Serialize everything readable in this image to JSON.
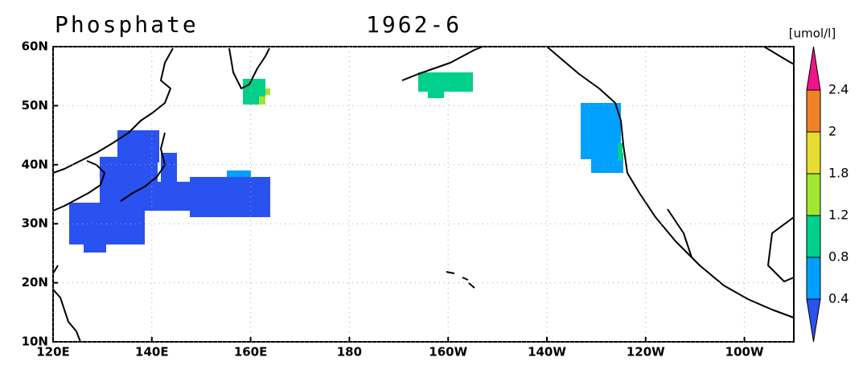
{
  "title": "Phosphate",
  "date": "1962-6",
  "map": {
    "xlim": [
      120,
      270
    ],
    "ylim": [
      10,
      60
    ],
    "xticks": [
      {
        "value": 120,
        "label": "120E"
      },
      {
        "value": 140,
        "label": "140E"
      },
      {
        "value": 160,
        "label": "160E"
      },
      180,
      {
        "value": 200,
        "label": "160W"
      },
      {
        "value": 220,
        "label": "140W"
      },
      {
        "value": 240,
        "label": "120W"
      },
      {
        "value": 260,
        "label": "100W"
      }
    ],
    "yticks": [
      {
        "value": 10,
        "label": "10N"
      },
      {
        "value": 20,
        "label": "20N"
      },
      {
        "value": 30,
        "label": "30N"
      },
      {
        "value": 40,
        "label": "40N"
      },
      {
        "value": 50,
        "label": "50N"
      },
      {
        "value": 60,
        "label": "60N"
      }
    ],
    "grid": true
  },
  "colorbar": {
    "unit": "[umol/l]",
    "levels": [
      0.4,
      0.8,
      1.2,
      1.8,
      2,
      2.4
    ],
    "colors": [
      "#2a52f0",
      "#00a0ff",
      "#00d08c",
      "#a0e632",
      "#e6dc32",
      "#f08228",
      "#f0148c"
    ]
  }
}
